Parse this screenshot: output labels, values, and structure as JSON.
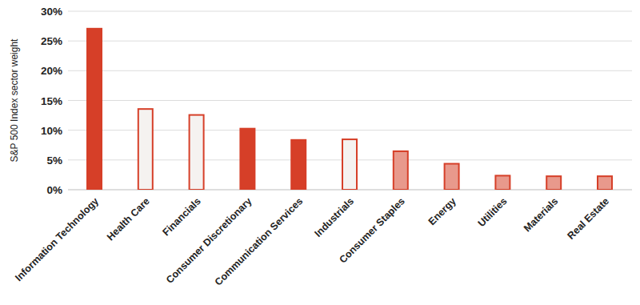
{
  "chart_data": {
    "type": "bar",
    "y_label": "S&P 500 Index sector weight",
    "categories": [
      "Information Technology",
      "Health Care",
      "Financials",
      "Consumer Discretionary",
      "Communication Services",
      "Industrials",
      "Consumer Staples",
      "Energy",
      "Utilities",
      "Materials",
      "Real Estate"
    ],
    "values": [
      27.2,
      13.7,
      12.7,
      10.4,
      8.5,
      8.6,
      6.6,
      4.5,
      2.5,
      2.4,
      2.4
    ],
    "colors": [
      "#d63f28",
      "#f5f2f0",
      "#f5f2f0",
      "#d63f28",
      "#d63f28",
      "#f5f2f0",
      "#e8998c",
      "#e8998c",
      "#e8998c",
      "#e8998c",
      "#e8998c"
    ],
    "ylim": [
      0,
      30
    ],
    "yticks": [
      {
        "value": 0,
        "label": "0%"
      },
      {
        "value": 5,
        "label": "5%"
      },
      {
        "value": 10,
        "label": "10%"
      },
      {
        "value": 15,
        "label": "15%"
      },
      {
        "value": 20,
        "label": "20%"
      },
      {
        "value": 25,
        "label": "25%"
      },
      {
        "value": 30,
        "label": "30%"
      }
    ],
    "grid": true
  }
}
